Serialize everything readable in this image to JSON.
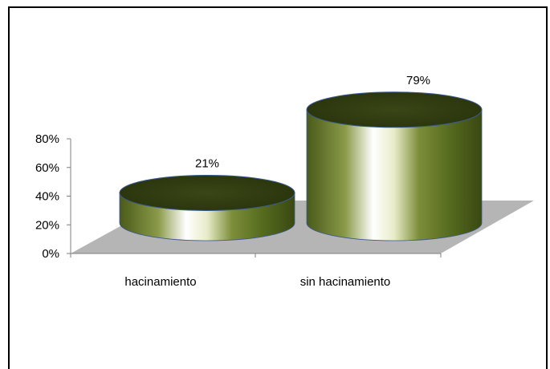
{
  "chart_data": {
    "type": "bar",
    "style": "3d-cylinder",
    "categories": [
      "hacinamiento",
      "sin hacinamiento"
    ],
    "values": [
      21,
      79
    ],
    "data_labels": [
      "21%",
      "79%"
    ],
    "ylim": [
      0,
      80
    ],
    "yticks": [
      "0%",
      "20%",
      "40%",
      "60%",
      "80%"
    ],
    "grid": false,
    "legend": "none",
    "colors": {
      "bar_dark": "#2e3a12",
      "bar_mid": "#6a7a2c",
      "bar_light": "#ffffff",
      "floor": "#b5b5b5",
      "bar_edge": "#3a5a8c"
    }
  }
}
